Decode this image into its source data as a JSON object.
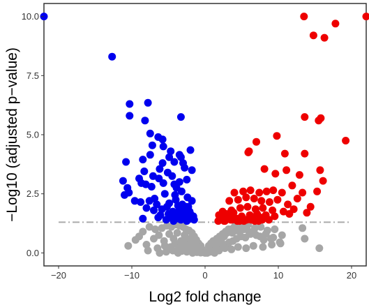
{
  "chart_data": {
    "type": "scatter",
    "title": "",
    "xlabel": "Log2 fold change",
    "ylabel": "−Log10 (adjusted p−value)",
    "xlim": [
      -22,
      22
    ],
    "ylim": [
      -0.55,
      10.55
    ],
    "x_ticks": [
      -20,
      -10,
      0,
      10,
      20
    ],
    "x_tick_labels": [
      "−20",
      "−10",
      "0",
      "10",
      "20"
    ],
    "y_ticks": [
      0,
      2.5,
      5,
      7.5,
      10
    ],
    "y_tick_labels": [
      "0.0",
      "2.5",
      "5.0",
      "7.5",
      "10.0"
    ],
    "threshold_line": {
      "y": 1.3,
      "x_range": [
        -20,
        20
      ],
      "style": "dashdot",
      "color": "#aaaaaa"
    },
    "grid": false,
    "legend": "none",
    "colors": {
      "down": "#0000ee",
      "up": "#ee0000",
      "ns": "#a6a6a6"
    },
    "series": [
      {
        "group": "down",
        "x": [
          -22,
          -12.7,
          -10.3,
          -10.3,
          -7.8,
          -8.2,
          -7.5,
          -6.4,
          -5.8,
          -3.3,
          -4.7,
          -2.0,
          -3.5,
          -3.3,
          -7.2,
          -5.7,
          -4.9,
          -10.8,
          -11.2,
          -8.5,
          -7.5,
          -10.6,
          -5.8,
          -3.0,
          -1.8,
          -8.3,
          -6.2,
          -4.2,
          -2.8,
          -9.0,
          -7.1,
          -6.3,
          -8.7,
          -5.1,
          -4.5,
          -3.5,
          -3.9,
          -11.0,
          -10.4,
          -8.1,
          -7.3,
          -5.7,
          -4.2,
          -2.5,
          -9.6,
          -8.8,
          -6.9,
          -5.5,
          -4.1,
          -3.2,
          -2.4,
          -1.8,
          -8.0,
          -6.6,
          -4.9,
          -3.7,
          -2.6,
          -7.0,
          -5.9,
          -4.4,
          -3.4,
          -2.1,
          -6.1,
          -5.0,
          -3.9,
          -3.0,
          -2.2,
          -4.6,
          -3.6,
          -2.7,
          -1.9,
          -5.3,
          -4.3,
          -3.3,
          -2.5,
          -1.7,
          -8.5,
          -6.4,
          -4.8,
          -3.8,
          -2.8,
          -2.0,
          -1.5,
          -5.2,
          -4.0,
          -3.1,
          -2.3,
          -7.6,
          -4.7,
          -3.5,
          -2.9,
          -1.6
        ],
        "y": [
          10.0,
          8.3,
          6.3,
          5.8,
          6.35,
          5.6,
          5.05,
          4.9,
          4.8,
          5.75,
          4.3,
          4.35,
          4.15,
          4.05,
          4.55,
          4.5,
          4.05,
          3.85,
          3.05,
          3.95,
          4.15,
          2.75,
          3.8,
          3.8,
          3.5,
          3.45,
          3.55,
          3.85,
          3.6,
          3.15,
          3.25,
          3.15,
          2.95,
          3.4,
          3.25,
          3.0,
          2.75,
          2.45,
          2.55,
          2.9,
          2.8,
          2.95,
          2.9,
          3.1,
          2.2,
          2.15,
          2.3,
          2.5,
          2.45,
          2.6,
          2.35,
          2.2,
          1.9,
          2.05,
          2.1,
          2.0,
          1.95,
          1.8,
          1.85,
          1.75,
          1.8,
          1.75,
          1.6,
          1.65,
          1.6,
          1.55,
          1.6,
          1.5,
          1.45,
          1.5,
          1.45,
          1.4,
          1.35,
          1.4,
          1.35,
          1.45,
          1.45,
          1.5,
          1.55,
          1.7,
          1.85,
          1.65,
          1.4,
          1.95,
          2.25,
          2.05,
          1.95,
          2.2,
          1.6,
          1.85,
          1.7,
          1.55
        ]
      },
      {
        "group": "up",
        "x": [
          13.5,
          14.8,
          16.3,
          17.8,
          22,
          15.8,
          13.6,
          15.5,
          19.2,
          9.8,
          10.9,
          7.0,
          6.0,
          5.9,
          13.6,
          15.7,
          8.1,
          9.6,
          11.1,
          12.9,
          16.1,
          4.0,
          5.2,
          6.2,
          7.4,
          8.4,
          9.3,
          10.5,
          11.9,
          13.3,
          15.3,
          3.3,
          4.5,
          5.6,
          6.7,
          7.7,
          8.8,
          9.9,
          11.3,
          12.6,
          14.4,
          2.4,
          3.6,
          4.8,
          5.8,
          6.9,
          7.9,
          9.2,
          10.7,
          12.1,
          13.9,
          1.9,
          2.9,
          3.9,
          5.0,
          6.1,
          7.1,
          8.3,
          9.5,
          11.5,
          2.2,
          3.2,
          4.3,
          5.4,
          6.5,
          7.6,
          8.7,
          2.6,
          3.7,
          4.7,
          5.7,
          6.8,
          7.8,
          1.8,
          2.7,
          3.5,
          4.4,
          5.3,
          6.3,
          7.3
        ],
        "y": [
          10.0,
          9.2,
          9.1,
          9.7,
          10.0,
          5.7,
          5.75,
          5.6,
          4.75,
          4.95,
          4.2,
          4.7,
          4.3,
          4.25,
          4.2,
          3.5,
          3.55,
          3.35,
          3.5,
          3.3,
          3.05,
          2.55,
          2.6,
          2.65,
          2.55,
          2.6,
          2.65,
          2.55,
          2.85,
          2.55,
          2.6,
          2.2,
          2.25,
          2.35,
          2.3,
          2.2,
          2.15,
          2.25,
          2.05,
          2.3,
          1.95,
          1.75,
          1.8,
          1.9,
          1.95,
          1.85,
          1.9,
          1.8,
          1.75,
          1.85,
          1.7,
          1.6,
          1.65,
          1.7,
          1.55,
          1.6,
          1.65,
          1.6,
          1.55,
          1.65,
          1.45,
          1.5,
          1.45,
          1.4,
          1.45,
          1.5,
          1.4,
          1.35,
          1.4,
          1.35,
          1.4,
          1.35,
          1.4,
          1.35,
          1.35,
          1.4,
          1.35,
          1.35,
          1.4,
          1.35
        ]
      },
      {
        "group": "ns",
        "x": [
          -10.5,
          -8.5,
          -9.0,
          -7.6,
          -6.8,
          -5.9,
          -5.2,
          -4.6,
          -4.0,
          -3.5,
          -3.0,
          -2.6,
          -2.2,
          -1.8,
          -1.5,
          -1.2,
          -0.9,
          -0.6,
          -0.4,
          -0.2,
          -9.5,
          -8.0,
          -7.0,
          -6.3,
          -5.6,
          -4.9,
          -4.3,
          -3.8,
          -3.3,
          -2.8,
          -2.4,
          -2.0,
          -1.6,
          -1.3,
          -1.0,
          -0.7,
          -0.5,
          -0.3,
          -0.1,
          -7.8,
          -6.5,
          -5.5,
          -4.7,
          -4.1,
          -3.6,
          -3.1,
          -2.7,
          -2.3,
          -1.9,
          -1.4,
          -1.1,
          -0.8,
          -0.5,
          -6.2,
          -5.3,
          -4.4,
          -3.7,
          -3.2,
          -2.5,
          -1.7,
          -1.1,
          -0.6,
          0.0,
          0.2,
          0.4,
          0.6,
          0.9,
          1.2,
          1.5,
          1.8,
          2.2,
          2.6,
          3.0,
          3.5,
          4.0,
          4.6,
          5.2,
          5.9,
          6.8,
          7.6,
          8.5,
          9.5,
          10.5,
          0.3,
          0.7,
          1.0,
          1.4,
          1.7,
          2.1,
          2.5,
          2.9,
          3.3,
          3.8,
          4.3,
          4.9,
          5.5,
          6.2,
          7.0,
          8.0,
          9.0,
          10.2,
          0.5,
          0.8,
          1.1,
          1.6,
          2.0,
          2.4,
          2.8,
          3.2,
          3.7,
          4.2,
          4.7,
          5.3,
          6.0,
          6.7,
          7.5,
          8.3,
          9.3,
          1.3,
          1.9,
          2.7,
          3.6,
          4.5,
          5.6,
          6.6,
          7.9,
          9.1,
          10.3,
          13.3,
          13.6,
          15.6
        ],
        "y": [
          0.3,
          0.9,
          0.7,
          1.1,
          1.0,
          1.05,
          1.15,
          1.1,
          1.2,
          1.15,
          1.1,
          1.0,
          0.95,
          0.85,
          0.7,
          0.55,
          0.4,
          0.3,
          0.15,
          0.05,
          0.55,
          0.35,
          0.6,
          0.75,
          0.5,
          0.8,
          0.6,
          0.85,
          0.5,
          0.75,
          0.55,
          0.6,
          0.45,
          0.35,
          0.25,
          0.15,
          0.1,
          0.05,
          0.02,
          0.1,
          0.2,
          0.3,
          0.25,
          0.4,
          0.2,
          0.35,
          0.15,
          0.3,
          0.2,
          0.15,
          0.1,
          0.08,
          0.05,
          0.0,
          0.05,
          0.1,
          0.0,
          0.08,
          0.05,
          0.0,
          0.03,
          0.01,
          0.0,
          0.02,
          0.05,
          0.1,
          0.15,
          0.2,
          0.3,
          0.4,
          0.55,
          0.7,
          0.85,
          1.0,
          1.1,
          1.15,
          1.1,
          1.2,
          1.05,
          1.1,
          0.95,
          1.0,
          0.75,
          0.0,
          0.05,
          0.1,
          0.08,
          0.15,
          0.2,
          0.3,
          0.35,
          0.45,
          0.5,
          0.6,
          0.7,
          0.65,
          0.8,
          0.75,
          0.55,
          0.6,
          0.45,
          0.3,
          0.4,
          0.5,
          0.6,
          0.7,
          0.8,
          0.9,
          1.0,
          0.85,
          0.95,
          0.9,
          1.0,
          0.9,
          0.85,
          0.7,
          0.8,
          0.65,
          0.0,
          0.1,
          0.2,
          0.15,
          0.25,
          0.2,
          0.3,
          0.25,
          0.35,
          0.4,
          1.05,
          0.6,
          0.2
        ]
      }
    ]
  }
}
